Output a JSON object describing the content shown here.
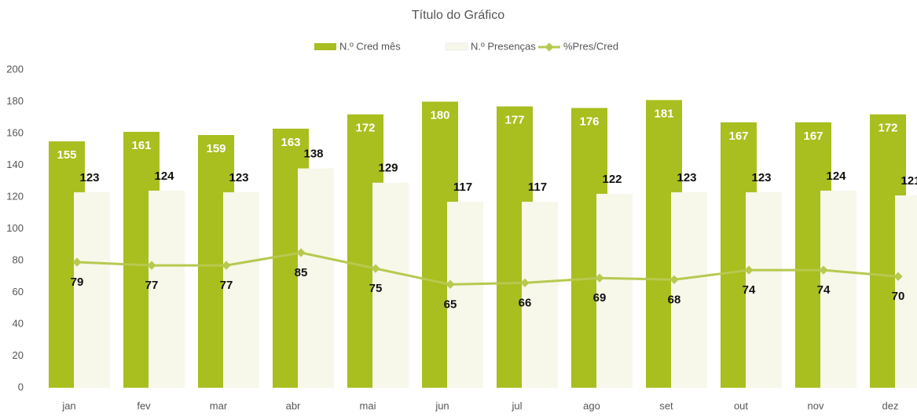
{
  "chart_data": {
    "type": "bar-line",
    "title": "Título do Gráfico",
    "categories": [
      "jan",
      "fev",
      "mar",
      "abr",
      "mai",
      "jun",
      "jul",
      "ago",
      "set",
      "out",
      "nov",
      "dez"
    ],
    "series": [
      {
        "name": "N.º Cred mês",
        "type": "bar",
        "color": "#a9be1f",
        "values": [
          155,
          161,
          159,
          163,
          172,
          180,
          177,
          176,
          181,
          167,
          167,
          172
        ]
      },
      {
        "name": "N.º Presenças",
        "type": "bar",
        "color": "#f7f7ea",
        "values": [
          123,
          124,
          123,
          138,
          129,
          117,
          117,
          122,
          123,
          123,
          124,
          121
        ]
      },
      {
        "name": "%Pres/Cred",
        "type": "line",
        "color": "#b7c94f",
        "values": [
          79,
          77,
          77,
          85,
          75,
          65,
          66,
          69,
          68,
          74,
          74,
          70
        ]
      }
    ],
    "ylim": [
      0,
      200
    ],
    "yticks": [
      0,
      20,
      40,
      60,
      80,
      100,
      120,
      140,
      160,
      180,
      200
    ],
    "grid": false,
    "legend": "top"
  }
}
